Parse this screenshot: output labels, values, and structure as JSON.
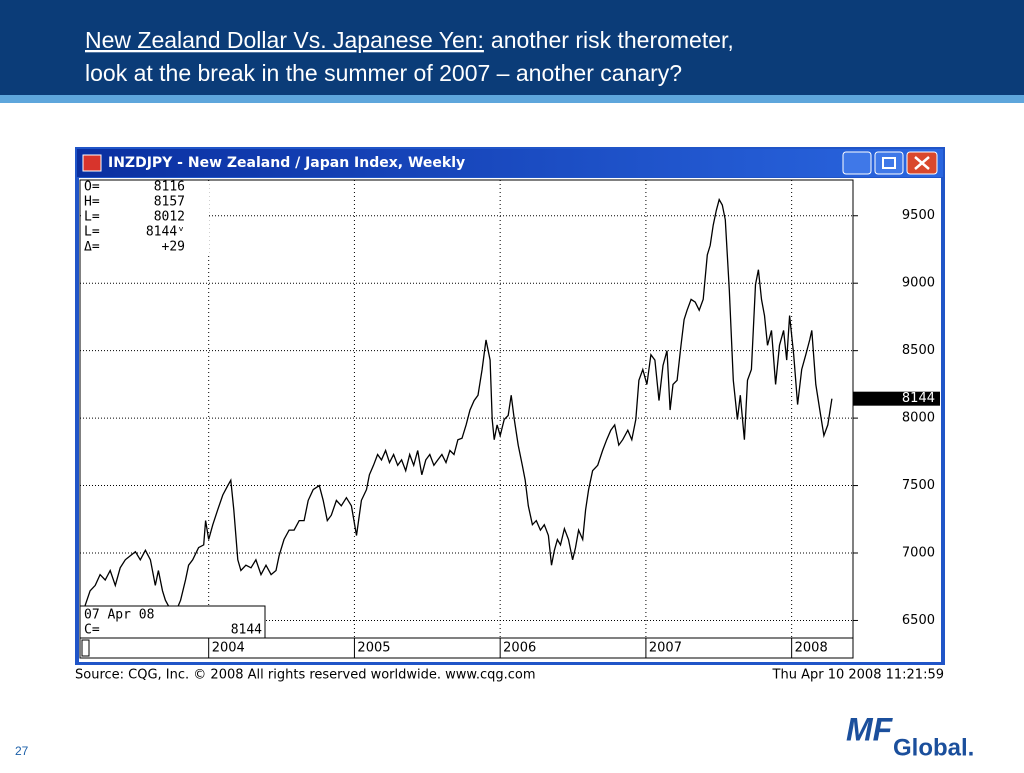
{
  "slide": {
    "title_underlined": "New Zealand Dollar Vs. Japanese Yen:",
    "title_line1_rest": "another risk therometer,",
    "title_line2": "look at the break in the summer of 2007 – another canary?",
    "page_number": "27",
    "logo_main": "MF",
    "logo_sub": "Global."
  },
  "chart_data": {
    "type": "line",
    "title": "INZDJPY - New Zealand / Japan Index, Weekly",
    "color": "#000000",
    "x": [
      2003.152,
      2003.186,
      2003.221,
      2003.255,
      2003.29,
      2003.324,
      2003.359,
      2003.393,
      2003.428,
      2003.462,
      2003.497,
      2003.531,
      2003.566,
      2003.6,
      2003.634,
      2003.655,
      2003.683,
      2003.703,
      2003.738,
      2003.772,
      2003.807,
      2003.841,
      2003.862,
      2003.89,
      2003.931,
      2003.966,
      2003.979,
      2004.0,
      2004.028,
      2004.062,
      2004.097,
      2004.131,
      2004.152,
      2004.172,
      2004.2,
      2004.221,
      2004.255,
      2004.29,
      2004.324,
      2004.359,
      2004.393,
      2004.428,
      2004.462,
      2004.483,
      2004.517,
      2004.552,
      2004.586,
      2004.621,
      2004.655,
      2004.683,
      2004.717,
      2004.759,
      2004.786,
      2004.814,
      2004.841,
      2004.876,
      2004.91,
      2004.945,
      2004.979,
      2005.014,
      2005.048,
      2005.083,
      2005.103,
      2005.131,
      2005.159,
      2005.186,
      2005.214,
      2005.241,
      2005.269,
      2005.297,
      2005.324,
      2005.352,
      2005.379,
      2005.407,
      2005.434,
      2005.462,
      2005.49,
      2005.517,
      2005.545,
      2005.572,
      2005.6,
      2005.628,
      2005.655,
      2005.683,
      2005.71,
      2005.738,
      2005.766,
      2005.793,
      2005.821,
      2005.848,
      2005.876,
      2005.903,
      2005.931,
      2005.945,
      2005.959,
      2005.979,
      2006.0,
      2006.028,
      2006.055,
      2006.076,
      2006.097,
      2006.124,
      2006.152,
      2006.172,
      2006.193,
      2006.221,
      2006.248,
      2006.276,
      2006.303,
      2006.331,
      2006.352,
      2006.372,
      2006.393,
      2006.414,
      2006.441,
      2006.469,
      2006.497,
      2006.517,
      2006.538,
      2006.566,
      2006.586,
      2006.607,
      2006.634,
      2006.669,
      2006.703,
      2006.731,
      2006.759,
      2006.786,
      2006.814,
      2006.841,
      2006.876,
      2006.903,
      2006.931,
      2006.952,
      2006.979,
      2007.007,
      2007.034,
      2007.062,
      2007.09,
      2007.117,
      2007.145,
      2007.166,
      2007.186,
      2007.214,
      2007.241,
      2007.262,
      2007.283,
      2007.31,
      2007.338,
      2007.366,
      2007.393,
      2007.421,
      2007.441,
      2007.462,
      2007.483,
      2007.503,
      2007.524,
      2007.545,
      2007.572,
      2007.6,
      2007.628,
      2007.648,
      2007.676,
      2007.697,
      2007.724,
      2007.752,
      2007.772,
      2007.793,
      2007.814,
      2007.834,
      2007.862,
      2007.89,
      2007.917,
      2007.945,
      2007.966,
      2007.986,
      2008.014,
      2008.041,
      2008.069,
      2008.097,
      2008.124,
      2008.138,
      2008.166,
      2008.193,
      2008.221,
      2008.248,
      2008.276
    ],
    "values": [
      6610,
      6720,
      6760,
      6840,
      6800,
      6870,
      6760,
      6890,
      6950,
      6980,
      7010,
      6950,
      7020,
      6950,
      6760,
      6870,
      6720,
      6650,
      6580,
      6560,
      6650,
      6800,
      6910,
      6950,
      7040,
      7060,
      7240,
      7100,
      7210,
      7320,
      7430,
      7500,
      7540,
      7320,
      6950,
      6870,
      6910,
      6890,
      6950,
      6840,
      6910,
      6840,
      6870,
      6980,
      7100,
      7170,
      7170,
      7240,
      7240,
      7390,
      7470,
      7500,
      7390,
      7240,
      7280,
      7390,
      7350,
      7410,
      7350,
      7130,
      7390,
      7470,
      7580,
      7650,
      7730,
      7690,
      7760,
      7670,
      7730,
      7650,
      7690,
      7610,
      7730,
      7650,
      7760,
      7580,
      7690,
      7730,
      7650,
      7690,
      7730,
      7670,
      7760,
      7730,
      7840,
      7850,
      7950,
      8060,
      8130,
      8170,
      8360,
      8580,
      8430,
      7990,
      7840,
      7950,
      7870,
      7990,
      8020,
      8170,
      7990,
      7800,
      7650,
      7540,
      7350,
      7210,
      7240,
      7170,
      7210,
      7130,
      6910,
      7020,
      7100,
      7060,
      7180,
      7100,
      6950,
      7040,
      7170,
      7100,
      7320,
      7470,
      7610,
      7650,
      7760,
      7840,
      7910,
      7950,
      7800,
      7840,
      7910,
      7840,
      7990,
      8280,
      8360,
      8250,
      8470,
      8430,
      8130,
      8390,
      8500,
      8060,
      8250,
      8280,
      8540,
      8730,
      8800,
      8880,
      8860,
      8800,
      8880,
      9210,
      9280,
      9430,
      9540,
      9620,
      9580,
      9470,
      8950,
      8280,
      7990,
      8170,
      7840,
      8280,
      8360,
      8990,
      9100,
      8880,
      8760,
      8540,
      8650,
      8250,
      8540,
      8650,
      8430,
      8760,
      8470,
      8100,
      8360,
      8470,
      8580,
      8650,
      8250,
      8060,
      7870,
      7950,
      8144
    ],
    "xlim": [
      2003.117,
      2008.421
    ],
    "xticks": [
      2004,
      2005,
      2006,
      2007,
      2008
    ],
    "ylim": [
      6370,
      9765
    ],
    "yticks": [
      6500,
      7000,
      7500,
      8000,
      8500,
      9000,
      9500
    ],
    "grid": true,
    "info": [
      {
        "label": "O=",
        "value": 8116
      },
      {
        "label": "H=",
        "value": 8157
      },
      {
        "label": "L=",
        "value": 8012
      },
      {
        "label": "L=",
        "value": 8144,
        "value_label": "8144ᵛ"
      },
      {
        "label": "Δ=",
        "value": 29,
        "value_label": "+29"
      }
    ],
    "date_label": "07 Apr 08",
    "close_label": "C=",
    "close_value": 8144,
    "last_value": 8144,
    "source": "Source: CQG, Inc. © 2008 All rights reserved worldwide. www.cqg.com",
    "timestamp": "Thu Apr 10 2008 11:21:59"
  }
}
